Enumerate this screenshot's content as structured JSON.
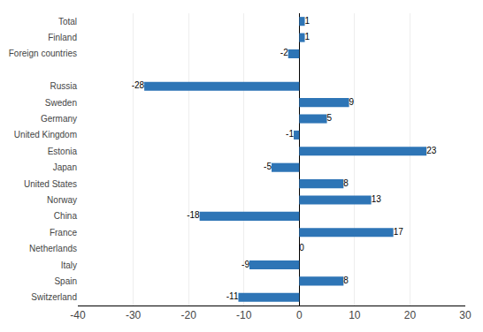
{
  "chart_data": {
    "type": "bar",
    "orientation": "horizontal",
    "categories": [
      "Total",
      "Finland",
      "Foreign countries",
      null,
      "Russia",
      "Sweden",
      "Germany",
      "United Kingdom",
      "Estonia",
      "Japan",
      "United States",
      "Norway",
      "China",
      "France",
      "Netherlands",
      "Italy",
      "Spain",
      "Switzerland"
    ],
    "values": [
      1,
      1,
      -2,
      null,
      -28,
      9,
      5,
      -1,
      23,
      -5,
      8,
      13,
      -18,
      17,
      0,
      -9,
      8,
      -11
    ],
    "color": "#2E75B6",
    "xlim": [
      -40,
      30
    ],
    "xticks": [
      -40,
      -30,
      -20,
      -10,
      0,
      10,
      20,
      30
    ],
    "grid": true,
    "data_labels": true
  }
}
